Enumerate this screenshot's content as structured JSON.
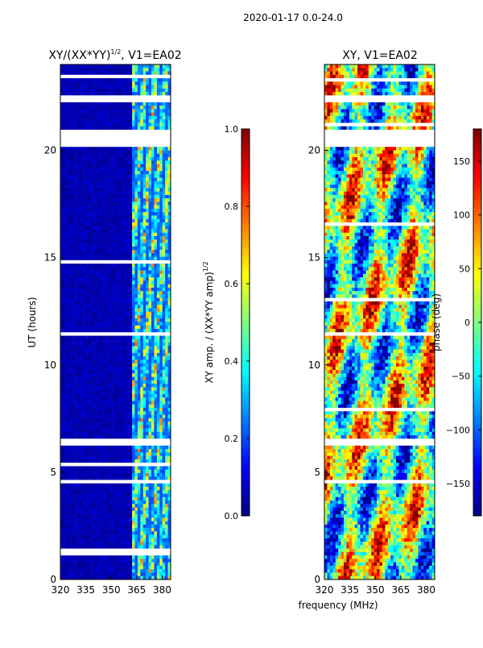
{
  "header": {
    "title": "2020-01-17 0.0-24.0"
  },
  "colors": {
    "cmap": [
      "#00007f",
      "#0000ff",
      "#007fff",
      "#00ffff",
      "#7fff7f",
      "#ffff00",
      "#ff7f00",
      "#ff0000",
      "#7f0000"
    ],
    "gap": "#ffffff"
  },
  "chart_data": [
    {
      "id": "amp",
      "type": "heatmap",
      "title": "XY/(XX*YY)",
      "title_sup": "1/2",
      "title_suffix": ", V1=EA02",
      "xlabel": "frequency (MHz)",
      "ylabel": "UT (hours)",
      "xlim": [
        320,
        385
      ],
      "ylim": [
        0,
        24
      ],
      "xticks": [
        320,
        335,
        350,
        365,
        380
      ],
      "yticks": [
        0,
        5,
        10,
        15,
        20
      ],
      "colorbar": {
        "label": "XY amp. / (XX*YY amp)",
        "label_sup": "1/2",
        "range": [
          0.0,
          1.0
        ],
        "ticks": [
          "0.0",
          "0.2",
          "0.4",
          "0.6",
          "0.8",
          "1.0"
        ],
        "tick_values": [
          0.0,
          0.2,
          0.4,
          0.6,
          0.8,
          1.0
        ]
      },
      "band_start_mhz": 362,
      "gaps_ut": [
        [
          20.2,
          21.0
        ],
        [
          22.3,
          22.5
        ],
        [
          1.1,
          1.4
        ],
        [
          6.3,
          6.5
        ],
        [
          4.5,
          4.65
        ],
        [
          14.7,
          14.85
        ],
        [
          11.3,
          11.5
        ]
      ]
    },
    {
      "id": "phase",
      "type": "heatmap",
      "title": "XY, V1=EA02",
      "xlabel": "frequency (MHz)",
      "ylabel": "",
      "xlim": [
        320,
        385
      ],
      "ylim": [
        0,
        24
      ],
      "xticks": [
        320,
        335,
        350,
        365,
        380
      ],
      "yticks": [
        0,
        5,
        10,
        15,
        20
      ],
      "colorbar": {
        "label": "phase (deg)",
        "range": [
          -180,
          180
        ],
        "ticks": [
          "−150",
          "−100",
          "−50",
          "0",
          "50",
          "100",
          "150"
        ],
        "tick_values": [
          -150,
          -100,
          -50,
          0,
          50,
          100,
          150
        ]
      },
      "gaps_ut": [
        [
          20.2,
          21.0
        ],
        [
          22.3,
          22.5
        ],
        [
          11.3,
          11.5
        ],
        [
          6.3,
          6.5
        ],
        [
          4.5,
          4.65
        ]
      ]
    }
  ],
  "shared": {
    "xlabel": "frequency (MHz)"
  }
}
